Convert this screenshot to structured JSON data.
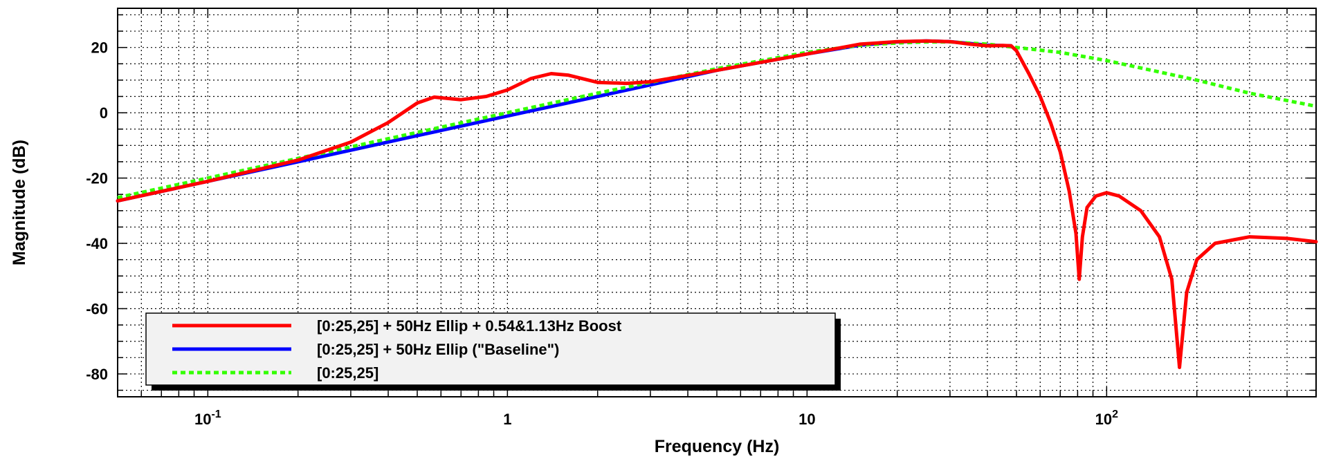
{
  "chart_data": {
    "type": "line",
    "xlabel": "Frequency (Hz)",
    "ylabel": "Magnitude (dB)",
    "xscale": "log",
    "xlim": [
      0.05,
      500
    ],
    "ylim": [
      -87,
      32
    ],
    "grid": true,
    "legend_position": "bottom-left",
    "x_ticks": [
      {
        "value": 0.1,
        "base": "10",
        "exp": "-1"
      },
      {
        "value": 1,
        "base": "1",
        "exp": ""
      },
      {
        "value": 10,
        "base": "10",
        "exp": ""
      },
      {
        "value": 100,
        "base": "10",
        "exp": "2"
      }
    ],
    "y_ticks": [
      20,
      0,
      -20,
      -40,
      -60,
      -80
    ],
    "series": [
      {
        "name": "[0:25,25] + 50Hz Ellip + 0.54&1.13Hz Boost",
        "color": "#ff0000",
        "style": "solid",
        "points": [
          [
            0.05,
            -27
          ],
          [
            0.1,
            -21
          ],
          [
            0.2,
            -14.5
          ],
          [
            0.3,
            -9
          ],
          [
            0.4,
            -3
          ],
          [
            0.5,
            3
          ],
          [
            0.57,
            4.8
          ],
          [
            0.7,
            4
          ],
          [
            0.85,
            5
          ],
          [
            1.0,
            7
          ],
          [
            1.2,
            10.5
          ],
          [
            1.4,
            12
          ],
          [
            1.6,
            11.5
          ],
          [
            2.0,
            9.3
          ],
          [
            2.5,
            9
          ],
          [
            3.0,
            9.5
          ],
          [
            5,
            13
          ],
          [
            10,
            18
          ],
          [
            15,
            21
          ],
          [
            20,
            21.8
          ],
          [
            25,
            22
          ],
          [
            30,
            21.8
          ],
          [
            35,
            21
          ],
          [
            40,
            20.5
          ],
          [
            45,
            20.6
          ],
          [
            48,
            20.5
          ],
          [
            50,
            19
          ],
          [
            55,
            12
          ],
          [
            60,
            5
          ],
          [
            65,
            -3
          ],
          [
            70,
            -12
          ],
          [
            75,
            -24
          ],
          [
            79,
            -37
          ],
          [
            81,
            -51
          ],
          [
            83,
            -38
          ],
          [
            86,
            -29
          ],
          [
            92,
            -25.5
          ],
          [
            100,
            -24.5
          ],
          [
            110,
            -25.5
          ],
          [
            130,
            -30
          ],
          [
            150,
            -38
          ],
          [
            165,
            -51
          ],
          [
            175,
            -78
          ],
          [
            185,
            -55
          ],
          [
            200,
            -45
          ],
          [
            230,
            -40
          ],
          [
            300,
            -38
          ],
          [
            400,
            -38.5
          ],
          [
            500,
            -39.5
          ]
        ]
      },
      {
        "name": "[0:25,25] + 50Hz Ellip (\"Baseline\")",
        "color": "#0000ff",
        "style": "solid",
        "points": [
          [
            0.05,
            -27
          ],
          [
            0.1,
            -21
          ],
          [
            0.2,
            -15
          ],
          [
            0.5,
            -7
          ],
          [
            1,
            -1
          ],
          [
            2,
            5
          ],
          [
            5,
            13
          ],
          [
            10,
            18
          ],
          [
            15,
            20.7
          ],
          [
            20,
            21.7
          ],
          [
            25,
            22
          ],
          [
            30,
            21.8
          ],
          [
            40,
            20.7
          ],
          [
            48,
            20.5
          ]
        ]
      },
      {
        "name": "[0:25,25]",
        "color": "#33ff00",
        "style": "dotted",
        "points": [
          [
            0.05,
            -26
          ],
          [
            0.1,
            -20
          ],
          [
            0.2,
            -14
          ],
          [
            0.5,
            -6
          ],
          [
            1,
            0
          ],
          [
            2,
            6
          ],
          [
            5,
            13.5
          ],
          [
            10,
            18.5
          ],
          [
            15,
            20.7
          ],
          [
            20,
            21.4
          ],
          [
            25,
            21.7
          ],
          [
            30,
            21.7
          ],
          [
            40,
            21
          ],
          [
            50,
            20
          ],
          [
            70,
            18.5
          ],
          [
            100,
            16
          ],
          [
            200,
            10
          ],
          [
            300,
            6
          ],
          [
            500,
            2
          ]
        ]
      }
    ]
  }
}
